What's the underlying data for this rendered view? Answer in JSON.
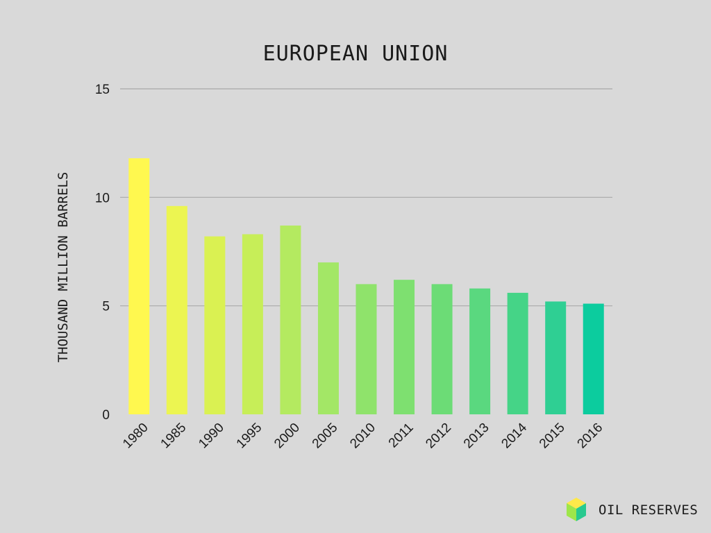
{
  "chart_data": {
    "type": "bar",
    "title": "EUROPEAN UNION",
    "xlabel": "",
    "ylabel": "THOUSAND MILLION BARRELS",
    "categories": [
      "1980",
      "1985",
      "1990",
      "1995",
      "2000",
      "2005",
      "2010",
      "2011",
      "2012",
      "2013",
      "2014",
      "2015",
      "2016"
    ],
    "values": [
      11.8,
      9.6,
      8.2,
      8.3,
      8.7,
      7.0,
      6.0,
      6.2,
      6.0,
      5.8,
      5.6,
      5.2,
      5.1
    ],
    "ylim": [
      0,
      15
    ],
    "yticks": [
      0,
      5,
      10,
      15
    ],
    "ytick_labels": [
      "0",
      "5",
      "10",
      "15"
    ],
    "grid": true,
    "legend": "none",
    "colors": [
      "#fff84f",
      "#ecf551",
      "#daf152",
      "#c7ee58",
      "#b4ea60",
      "#a3e766",
      "#8fe36b",
      "#7ee070",
      "#6cdc76",
      "#5ad87f",
      "#45d487",
      "#2fcf93",
      "#0ccc9e"
    ]
  },
  "branding": {
    "label": "OIL RESERVES",
    "icon": "cube-icon",
    "icon_colors": [
      "#ffe94a",
      "#9ee64a",
      "#28c98f"
    ]
  }
}
